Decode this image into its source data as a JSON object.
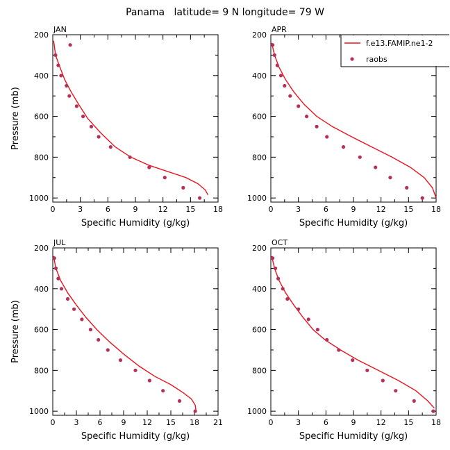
{
  "figure": {
    "title": "Panama   latitude= 9 N longitude= 79 W"
  },
  "colors": {
    "model_line": "#e8141e",
    "obs_marker": "#b5315a",
    "axis": "#000000"
  },
  "legend": {
    "entries": [
      {
        "label": "f.e13.FAMIP.ne1-2",
        "kind": "line"
      },
      {
        "label": "raobs",
        "kind": "marker"
      }
    ],
    "placement": "top-right of APR panel"
  },
  "chart_data": [
    {
      "type": "line",
      "panel": "JAN",
      "xlabel": "Specific Humidity (g/kg)",
      "ylabel": "Pressure (mb)",
      "xlim": [
        0,
        18
      ],
      "xticks": [
        0,
        3,
        6,
        9,
        12,
        15,
        18
      ],
      "ylim": [
        200,
        1020
      ],
      "yticks": [
        200,
        400,
        600,
        800,
        1000
      ],
      "y_inverted": true,
      "series": [
        {
          "name": "f.e13.FAMIP.ne1-2",
          "kind": "line",
          "x": [
            0.1,
            0.3,
            0.7,
            1.3,
            2.0,
            2.8,
            3.8,
            5.2,
            6.8,
            8.5,
            10.5,
            12.5,
            14.5,
            15.8,
            16.6,
            16.9
          ],
          "y": [
            230,
            300,
            350,
            420,
            480,
            540,
            610,
            680,
            750,
            800,
            840,
            870,
            900,
            930,
            960,
            985
          ]
        },
        {
          "name": "raobs",
          "kind": "marker",
          "x": [
            1.9,
            0.3,
            0.6,
            0.9,
            1.5,
            1.8,
            2.6,
            3.3,
            4.2,
            5.0,
            6.3,
            8.4,
            10.5,
            12.2,
            14.2,
            16.0
          ],
          "y": [
            250,
            300,
            350,
            400,
            450,
            500,
            550,
            600,
            650,
            700,
            750,
            800,
            850,
            900,
            950,
            1000
          ]
        }
      ]
    },
    {
      "type": "line",
      "panel": "APR",
      "xlabel": "Specific Humidity (g/kg)",
      "ylabel": "",
      "xlim": [
        0,
        18
      ],
      "xticks": [
        0,
        3,
        6,
        9,
        12,
        15,
        18
      ],
      "ylim": [
        200,
        1020
      ],
      "yticks": [
        200,
        400,
        600,
        800,
        1000
      ],
      "y_inverted": true,
      "series": [
        {
          "name": "f.e13.FAMIP.ne1-2",
          "kind": "line",
          "x": [
            0.1,
            0.4,
            0.9,
            1.6,
            2.5,
            3.6,
            5.0,
            6.7,
            8.8,
            11.0,
            13.2,
            15.2,
            16.7,
            17.6,
            18.0
          ],
          "y": [
            240,
            300,
            360,
            420,
            480,
            540,
            600,
            650,
            700,
            750,
            800,
            850,
            900,
            950,
            1000
          ]
        },
        {
          "name": "raobs",
          "kind": "marker",
          "x": [
            0.2,
            0.4,
            0.7,
            1.1,
            1.5,
            2.1,
            3.0,
            3.9,
            5.0,
            6.1,
            7.9,
            9.7,
            11.4,
            13.0,
            14.8,
            16.5
          ],
          "y": [
            250,
            300,
            350,
            400,
            450,
            500,
            550,
            600,
            650,
            700,
            750,
            800,
            850,
            900,
            950,
            1000
          ]
        }
      ]
    },
    {
      "type": "line",
      "panel": "JUL",
      "xlabel": "Specific Humidity (g/kg)",
      "ylabel": "Pressure (mb)",
      "xlim": [
        0,
        21
      ],
      "xticks": [
        0,
        3,
        6,
        9,
        12,
        15,
        18,
        21
      ],
      "ylim": [
        200,
        1020
      ],
      "yticks": [
        200,
        400,
        600,
        800,
        1000
      ],
      "y_inverted": true,
      "series": [
        {
          "name": "f.e13.FAMIP.ne1-2",
          "kind": "line",
          "x": [
            0.1,
            0.4,
            1.0,
            1.9,
            3.0,
            4.2,
            5.6,
            7.2,
            9.0,
            11.0,
            13.0,
            15.0,
            16.6,
            17.6,
            18.1,
            18.2
          ],
          "y": [
            240,
            300,
            360,
            420,
            480,
            540,
            600,
            660,
            720,
            780,
            830,
            870,
            910,
            940,
            970,
            1000
          ]
        },
        {
          "name": "raobs",
          "kind": "marker",
          "x": [
            0.2,
            0.4,
            0.7,
            1.1,
            1.9,
            2.7,
            3.7,
            4.8,
            5.8,
            7.0,
            8.6,
            10.5,
            12.3,
            14.0,
            16.1,
            18.1
          ],
          "y": [
            250,
            300,
            350,
            400,
            450,
            500,
            550,
            600,
            650,
            700,
            750,
            800,
            850,
            900,
            950,
            1000
          ]
        }
      ]
    },
    {
      "type": "line",
      "panel": "OCT",
      "xlabel": "Specific Humidity (g/kg)",
      "ylabel": "",
      "xlim": [
        0,
        18
      ],
      "xticks": [
        0,
        3,
        6,
        9,
        12,
        15,
        18
      ],
      "ylim": [
        200,
        1020
      ],
      "yticks": [
        200,
        400,
        600,
        800,
        1000
      ],
      "y_inverted": true,
      "series": [
        {
          "name": "f.e13.FAMIP.ne1-2",
          "kind": "line",
          "x": [
            0.1,
            0.4,
            0.9,
            1.6,
            2.5,
            3.5,
            4.6,
            5.9,
            7.6,
            9.5,
            11.7,
            13.9,
            15.8,
            17.1,
            17.8
          ],
          "y": [
            240,
            300,
            360,
            420,
            480,
            540,
            600,
            650,
            700,
            750,
            800,
            850,
            900,
            950,
            985
          ]
        },
        {
          "name": "raobs",
          "kind": "marker",
          "x": [
            0.2,
            0.5,
            0.8,
            1.3,
            1.8,
            3.0,
            4.1,
            5.1,
            6.1,
            7.4,
            8.9,
            10.5,
            12.2,
            13.6,
            15.6,
            17.7
          ],
          "y": [
            250,
            300,
            350,
            400,
            450,
            500,
            550,
            600,
            650,
            700,
            750,
            800,
            850,
            900,
            950,
            1000
          ]
        }
      ]
    }
  ]
}
